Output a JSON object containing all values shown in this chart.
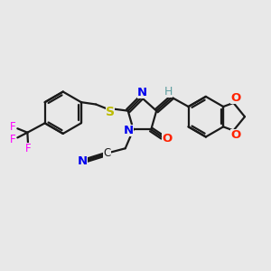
{
  "bg_color": "#e8e8e8",
  "bond_color": "#1a1a1a",
  "atom_colors": {
    "N": "#0000ee",
    "O": "#ff2200",
    "S": "#bbbb00",
    "F": "#ff00ff",
    "H_exo": "#5f9ea0"
  },
  "lw": 1.6,
  "fs": 8.5
}
